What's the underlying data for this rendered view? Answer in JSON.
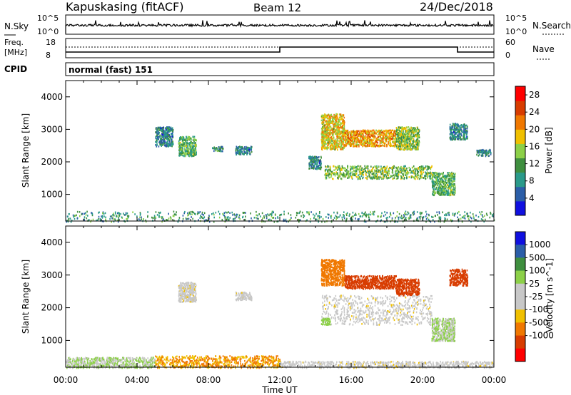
{
  "header": {
    "station": "Kapuskasing (fitACF)",
    "beam": "Beam 12",
    "date": "24/Dec/2018"
  },
  "noise_panel": {
    "left_label": "N.Sky",
    "right_label": "N.Search",
    "left_ticks": [
      "10^5",
      "10^0"
    ],
    "right_ticks": [
      "10^5",
      "10^0"
    ]
  },
  "freq_panel": {
    "left_label_1": "Freq.",
    "left_label_2": "[MHz]",
    "left_ticks": [
      "18",
      "8"
    ],
    "right_ticks": [
      "60",
      "0"
    ],
    "right_label": "Nave"
  },
  "cpid": {
    "label": "CPID",
    "value": "normal (fast) 151"
  },
  "colors": {
    "power_scale": [
      "#1010e0",
      "#2b5ea8",
      "#2a9a8a",
      "#3f8f3f",
      "#8cd048",
      "#f0c000",
      "#f07800",
      "#d83c00",
      "#ff0000"
    ],
    "velocity_scale": [
      "#1010e0",
      "#2b5ea8",
      "#3f8f3f",
      "#8cd048",
      "#c8c8c8",
      "#c8c8c8",
      "#f0c000",
      "#f07800",
      "#d83c00",
      "#ff0000"
    ],
    "ground_scatter": "#c0c0c0"
  },
  "chart_data": [
    {
      "type": "heatmap",
      "panel": "power",
      "xlabel": "Time UT",
      "ylabel": "Slant Range [km]",
      "xlim": [
        0,
        24
      ],
      "ylim": [
        180,
        4500
      ],
      "x_ticks": [
        "00:00",
        "04:00",
        "08:00",
        "12:00",
        "16:00",
        "20:00",
        "00:00"
      ],
      "y_ticks": [
        "1000",
        "2000",
        "3000",
        "4000"
      ],
      "colorbar_label": "Power [dB]",
      "colorbar_ticks": [
        "4",
        "8",
        "12",
        "16",
        "20",
        "24",
        "28"
      ],
      "colorbar_range": [
        0,
        30
      ],
      "regions": [
        {
          "t0": 0.0,
          "t1": 24.0,
          "r0": 180,
          "r1": 500,
          "value": 10
        },
        {
          "t0": 5.0,
          "t1": 6.0,
          "r0": 2500,
          "r1": 3100,
          "value": 8
        },
        {
          "t0": 6.3,
          "t1": 7.3,
          "r0": 2200,
          "r1": 2800,
          "value": 12
        },
        {
          "t0": 8.2,
          "t1": 8.8,
          "r0": 2350,
          "r1": 2500,
          "value": 9
        },
        {
          "t0": 9.5,
          "t1": 10.4,
          "r0": 2250,
          "r1": 2500,
          "value": 8
        },
        {
          "t0": 13.6,
          "t1": 14.3,
          "r0": 1800,
          "r1": 2200,
          "value": 8
        },
        {
          "t0": 14.3,
          "t1": 15.6,
          "r0": 2400,
          "r1": 3500,
          "value": 18
        },
        {
          "t0": 15.6,
          "t1": 18.5,
          "r0": 2500,
          "r1": 3000,
          "value": 20
        },
        {
          "t0": 18.5,
          "t1": 19.8,
          "r0": 2400,
          "r1": 3100,
          "value": 14
        },
        {
          "t0": 14.5,
          "t1": 20.5,
          "r0": 1500,
          "r1": 1900,
          "value": 14
        },
        {
          "t0": 20.5,
          "t1": 21.8,
          "r0": 1000,
          "r1": 1700,
          "value": 12
        },
        {
          "t0": 21.5,
          "t1": 22.5,
          "r0": 2700,
          "r1": 3200,
          "value": 8
        },
        {
          "t0": 23.0,
          "t1": 23.8,
          "r0": 2200,
          "r1": 2400,
          "value": 8
        }
      ]
    },
    {
      "type": "heatmap",
      "panel": "velocity",
      "xlabel": "Time UT",
      "ylabel": "Slant Range [km]",
      "xlim": [
        0,
        24
      ],
      "ylim": [
        180,
        4500
      ],
      "x_ticks": [
        "00:00",
        "04:00",
        "08:00",
        "12:00",
        "16:00",
        "20:00",
        "00:00"
      ],
      "y_ticks": [
        "1000",
        "2000",
        "3000",
        "4000"
      ],
      "colorbar_label": "Velocity [m s^-1]",
      "colorbar_ticks": [
        "1000",
        "500",
        "100",
        "25",
        "-25",
        "-100",
        "-500",
        "-1000"
      ],
      "colorbar_range": [
        -1000,
        1000
      ],
      "regions": [
        {
          "t0": 0.0,
          "t1": 5.0,
          "r0": 180,
          "r1": 500,
          "value": 100
        },
        {
          "t0": 5.0,
          "t1": 12.0,
          "r0": 180,
          "r1": 550,
          "value": -100
        },
        {
          "t0": 12.0,
          "t1": 24.0,
          "r0": 180,
          "r1": 380,
          "value": 0
        },
        {
          "t0": 6.3,
          "t1": 7.3,
          "r0": 2200,
          "r1": 2800,
          "value": 0
        },
        {
          "t0": 9.5,
          "t1": 10.4,
          "r0": 2250,
          "r1": 2500,
          "value": 0
        },
        {
          "t0": 14.3,
          "t1": 15.6,
          "r0": 2700,
          "r1": 3500,
          "value": -200
        },
        {
          "t0": 15.6,
          "t1": 18.5,
          "r0": 2600,
          "r1": 3000,
          "value": -400
        },
        {
          "t0": 18.5,
          "t1": 19.8,
          "r0": 2400,
          "r1": 2900,
          "value": -300
        },
        {
          "t0": 14.3,
          "t1": 20.5,
          "r0": 1500,
          "r1": 2400,
          "value": 0
        },
        {
          "t0": 14.3,
          "t1": 14.8,
          "r0": 1500,
          "r1": 1700,
          "value": 150
        },
        {
          "t0": 20.5,
          "t1": 21.8,
          "r0": 1000,
          "r1": 1700,
          "value": 100
        },
        {
          "t0": 21.5,
          "t1": 22.5,
          "r0": 2700,
          "r1": 3200,
          "value": -300
        }
      ]
    }
  ]
}
